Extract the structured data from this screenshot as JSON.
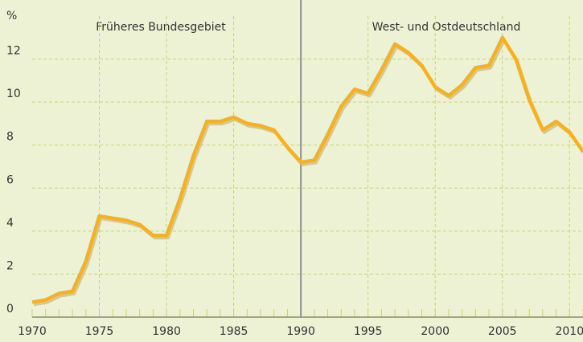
{
  "chart_data": {
    "type": "line",
    "y_unit": "%",
    "annotations": [
      "Früheres Bundesgebiet",
      "West- und Ostdeutschland"
    ],
    "divider_x": 1990,
    "x": [
      1970,
      1971,
      1972,
      1973,
      1974,
      1975,
      1976,
      1977,
      1978,
      1979,
      1980,
      1981,
      1982,
      1983,
      1984,
      1985,
      1986,
      1987,
      1988,
      1989,
      1990,
      1991,
      1992,
      1993,
      1994,
      1995,
      1996,
      1997,
      1998,
      1999,
      2000,
      2001,
      2002,
      2003,
      2004,
      2005,
      2006,
      2007,
      2008,
      2009,
      2010,
      2011
    ],
    "series": [
      {
        "color": "#f8b01c",
        "values": [
          0.7,
          0.8,
          1.1,
          1.2,
          2.6,
          4.7,
          4.6,
          4.5,
          4.3,
          3.8,
          3.8,
          5.5,
          7.5,
          9.1,
          9.1,
          9.3,
          9.0,
          8.9,
          8.7,
          7.9,
          7.2,
          7.3,
          8.5,
          9.8,
          10.6,
          10.4,
          11.5,
          12.7,
          12.3,
          11.7,
          10.7,
          10.3,
          10.8,
          11.6,
          11.7,
          13.0,
          12.0,
          10.1,
          8.7,
          9.1,
          8.6,
          7.7
        ]
      }
    ],
    "xlim": [
      1970,
      2011
    ],
    "xticks": [
      1970,
      1975,
      1980,
      1985,
      1990,
      1995,
      2000,
      2005,
      2010
    ],
    "ylim": [
      0,
      14
    ],
    "yticks": [
      0,
      2,
      4,
      6,
      8,
      10,
      12
    ],
    "grid": true
  }
}
